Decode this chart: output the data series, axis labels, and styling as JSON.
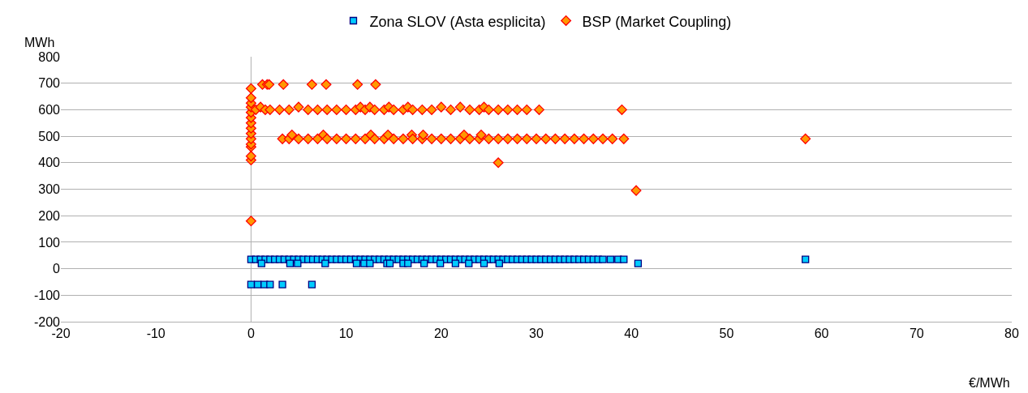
{
  "chart_data": {
    "type": "scatter",
    "xlabel": "€/MWh",
    "ylabel": "MWh",
    "xlim": [
      -20,
      80
    ],
    "xticks": [
      -20,
      -10,
      0,
      10,
      20,
      30,
      40,
      50,
      60,
      70,
      80
    ],
    "ylim": [
      -200,
      800
    ],
    "yticks": [
      -200,
      -100,
      0,
      100,
      200,
      300,
      400,
      500,
      600,
      700,
      800
    ],
    "grid": "y",
    "legend": "top",
    "ref_lines": [
      {
        "axis": "x",
        "value": 0,
        "color": "#b0b0b0"
      }
    ],
    "series": [
      {
        "name": "Zona SLOV (Asta esplicita)",
        "color": "#00ccff",
        "marker": "square",
        "x": [
          0,
          0.5,
          1,
          1.5,
          2,
          2.5,
          3,
          3.5,
          4,
          4.5,
          5,
          5.5,
          6,
          6.5,
          7,
          7.5,
          8,
          8.5,
          9,
          9.5,
          10,
          10.5,
          11,
          11.5,
          12,
          12.5,
          13,
          13.5,
          14,
          14.5,
          15,
          15.5,
          16,
          16.5,
          17,
          17.5,
          18,
          18.5,
          19,
          19.5,
          20,
          20.5,
          21,
          21.5,
          22,
          22.5,
          23,
          23.5,
          24,
          24.5,
          25,
          25.5,
          26,
          26.5,
          27,
          27.5,
          28,
          28.5,
          29,
          29.5,
          30,
          30.5,
          31,
          31.5,
          32,
          32.5,
          33,
          33.5,
          34,
          34.5,
          35,
          35.5,
          36,
          36.5,
          37,
          37.8,
          38.6,
          39.2,
          58.3,
          1.1,
          4.1,
          4.9,
          7.8,
          11.1,
          11.9,
          12.5,
          14.3,
          14.6,
          16,
          16.5,
          18.2,
          19.9,
          21.5,
          22.9,
          24.5,
          26.1,
          40.7,
          0,
          0.7,
          1.4,
          2,
          3.3,
          6.4
        ],
        "values": [
          35,
          35,
          35,
          35,
          35,
          35,
          35,
          35,
          35,
          35,
          35,
          35,
          35,
          35,
          35,
          35,
          35,
          35,
          35,
          35,
          35,
          35,
          35,
          35,
          35,
          35,
          35,
          35,
          35,
          35,
          35,
          35,
          35,
          35,
          35,
          35,
          35,
          35,
          35,
          35,
          35,
          35,
          35,
          35,
          35,
          35,
          35,
          35,
          35,
          35,
          35,
          35,
          35,
          35,
          35,
          35,
          35,
          35,
          35,
          35,
          35,
          35,
          35,
          35,
          35,
          35,
          35,
          35,
          35,
          35,
          35,
          35,
          35,
          35,
          35,
          35,
          35,
          35,
          35,
          20,
          20,
          20,
          20,
          20,
          20,
          20,
          20,
          20,
          20,
          20,
          20,
          20,
          20,
          20,
          20,
          20,
          20,
          -60,
          -60,
          -60,
          -60,
          -60,
          -60
        ]
      },
      {
        "name": "BSP (Market Coupling)",
        "color": "#ff9900",
        "marker": "diamond",
        "x": [
          0,
          0,
          0,
          0,
          0,
          0,
          0,
          0,
          0,
          0,
          0,
          0,
          0,
          0,
          0,
          1.2,
          1.7,
          1.9,
          3.4,
          6.4,
          7.9,
          11.2,
          13.1,
          0.5,
          1,
          1.5,
          2,
          3,
          4,
          5,
          6,
          7,
          8,
          9,
          10,
          11,
          11.5,
          12,
          12.5,
          13,
          14,
          14.5,
          15,
          16,
          16.5,
          17,
          18,
          19,
          20,
          21,
          22,
          23,
          24,
          24.5,
          25,
          26,
          27,
          28,
          29,
          30.3,
          39,
          3.3,
          4,
          4.3,
          5,
          6,
          7,
          7.6,
          8,
          9,
          10,
          11,
          12,
          12.6,
          13,
          14,
          14.4,
          15,
          16,
          16.9,
          17,
          18,
          18.1,
          19,
          20,
          21,
          22,
          22.4,
          23,
          24,
          24.2,
          25,
          26,
          27,
          28,
          29,
          30,
          31,
          32,
          33,
          34,
          35,
          36,
          37,
          38,
          39.2,
          26,
          40.5,
          58.3
        ],
        "values": [
          180,
          410,
          425,
          460,
          470,
          490,
          510,
          530,
          550,
          570,
          590,
          610,
          625,
          645,
          680,
          695,
          695,
          695,
          695,
          695,
          695,
          695,
          695,
          600,
          610,
          600,
          600,
          600,
          600,
          610,
          600,
          600,
          600,
          600,
          600,
          600,
          610,
          600,
          610,
          600,
          600,
          610,
          600,
          600,
          610,
          600,
          600,
          600,
          610,
          600,
          610,
          600,
          600,
          610,
          600,
          600,
          600,
          600,
          600,
          600,
          600,
          490,
          490,
          505,
          490,
          490,
          490,
          505,
          490,
          490,
          490,
          490,
          490,
          505,
          490,
          490,
          505,
          490,
          490,
          505,
          490,
          490,
          505,
          490,
          490,
          490,
          490,
          505,
          490,
          490,
          505,
          490,
          490,
          490,
          490,
          490,
          490,
          490,
          490,
          490,
          490,
          490,
          490,
          490,
          490,
          490,
          400,
          295,
          490
        ]
      }
    ]
  }
}
